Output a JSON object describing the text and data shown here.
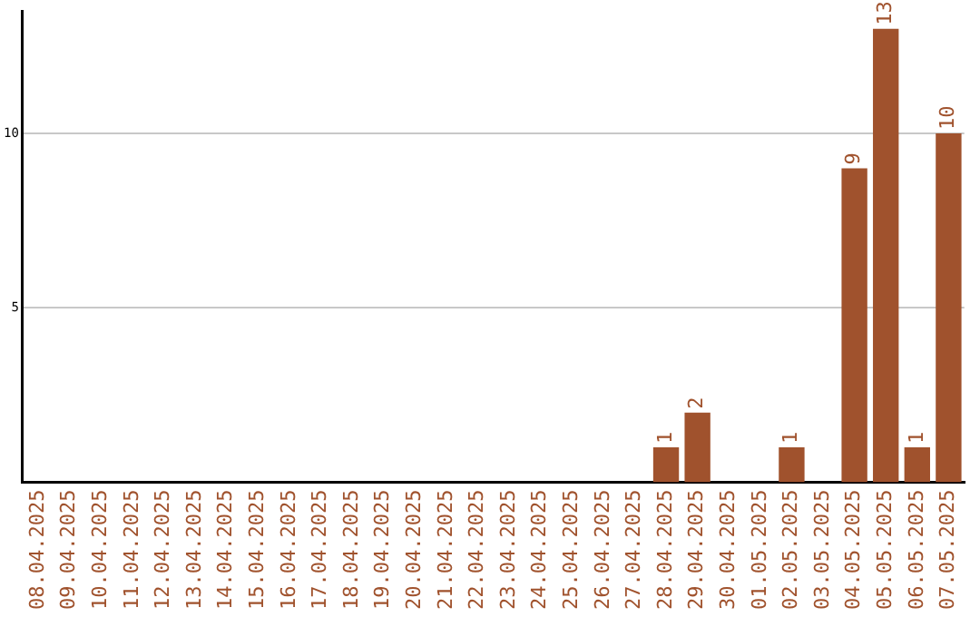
{
  "chart_data": {
    "type": "bar",
    "categories": [
      "08.04.2025",
      "09.04.2025",
      "10.04.2025",
      "11.04.2025",
      "12.04.2025",
      "13.04.2025",
      "14.04.2025",
      "15.04.2025",
      "16.04.2025",
      "17.04.2025",
      "18.04.2025",
      "19.04.2025",
      "20.04.2025",
      "21.04.2025",
      "22.04.2025",
      "23.04.2025",
      "24.04.2025",
      "25.04.2025",
      "26.04.2025",
      "27.04.2025",
      "28.04.2025",
      "29.04.2025",
      "30.04.2025",
      "01.05.2025",
      "02.05.2025",
      "03.05.2025",
      "04.05.2025",
      "05.05.2025",
      "06.05.2025",
      "07.05.2025"
    ],
    "values": [
      0,
      0,
      0,
      0,
      0,
      0,
      0,
      0,
      0,
      0,
      0,
      0,
      0,
      0,
      0,
      0,
      0,
      0,
      0,
      0,
      1,
      2,
      0,
      0,
      1,
      0,
      9,
      13,
      1,
      10
    ],
    "value_labels": [
      null,
      null,
      null,
      null,
      null,
      null,
      null,
      null,
      null,
      null,
      null,
      null,
      null,
      null,
      null,
      null,
      null,
      null,
      null,
      null,
      "1",
      "2",
      null,
      null,
      "1",
      null,
      "9",
      "13",
      "1",
      "10"
    ],
    "color": "#a0522d",
    "ylim": [
      0,
      13.5
    ],
    "yticks": [
      5,
      10
    ],
    "grid": "y",
    "legend": false
  }
}
